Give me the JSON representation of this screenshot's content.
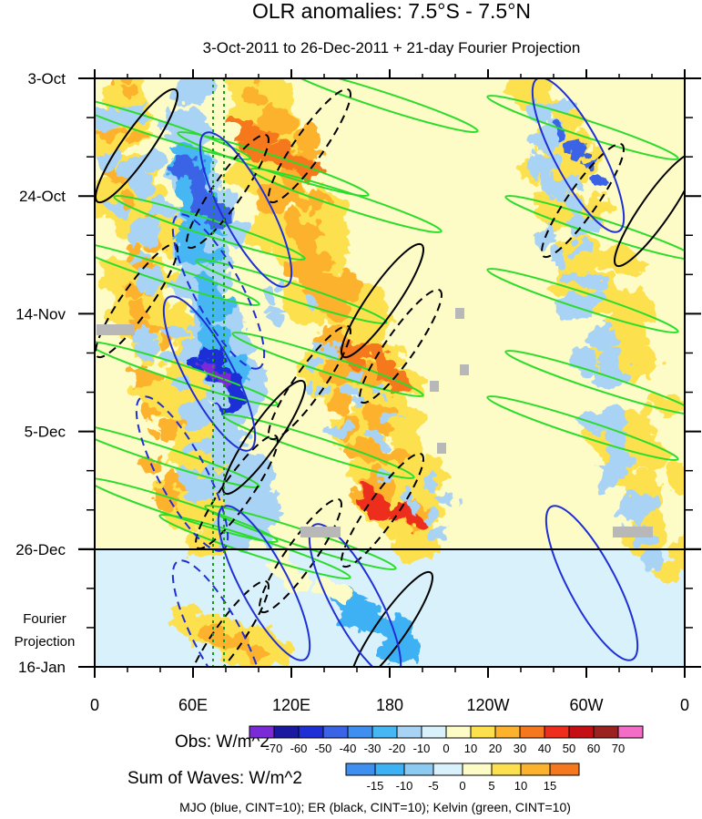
{
  "chart_data": {
    "type": "heatmap",
    "title": "OLR anomalies: 7.5°S - 7.5°N",
    "subtitle": "3-Oct-2011 to 26-Dec-2011 + 21-day Fourier Projection",
    "x_ticks": [
      "0",
      "60E",
      "120E",
      "180",
      "120W",
      "60W",
      "0"
    ],
    "y_ticks": [
      "3-Oct",
      "24-Oct",
      "14-Nov",
      "5-Dec",
      "26-Dec",
      "16-Jan"
    ],
    "projection_label_line1": "Fourier",
    "projection_label_line2": "Projection",
    "obs_legend": {
      "label": "Obs: W/m^2",
      "levels": [
        "-70",
        "-60",
        "-50",
        "-40",
        "-30",
        "-20",
        "-10",
        "0",
        "10",
        "20",
        "30",
        "40",
        "50",
        "60",
        "70"
      ],
      "colors": [
        "#7b2ad8",
        "#1a1aa0",
        "#1f2fd6",
        "#3a63e6",
        "#3f8ff0",
        "#47b7f4",
        "#a9d3f5",
        "#d9f1fb",
        "#fdfbc6",
        "#fde04e",
        "#fdb22d",
        "#f5781e",
        "#ee2d1d",
        "#c40f14",
        "#9c2121",
        "#f36cc6"
      ]
    },
    "waves_legend": {
      "label": "Sum of Waves: W/m^2",
      "levels": [
        "-15",
        "-10",
        "-5",
        "0",
        "5",
        "10",
        "15"
      ],
      "colors": [
        "#3f8ff0",
        "#3cb1f4",
        "#8ccaf2",
        "#d9f1fb",
        "#fdfbc6",
        "#fde04e",
        "#fdb22d",
        "#f5781e"
      ]
    },
    "footnote": "MJO (blue, CINT=10); ER (black, CINT=10); Kelvin (green, CINT=10)",
    "series_colors": {
      "mjo": "#1f2fd6",
      "er": "#000000",
      "kelvin": "#2bdc2b"
    },
    "projection_divider": "26-Dec"
  }
}
